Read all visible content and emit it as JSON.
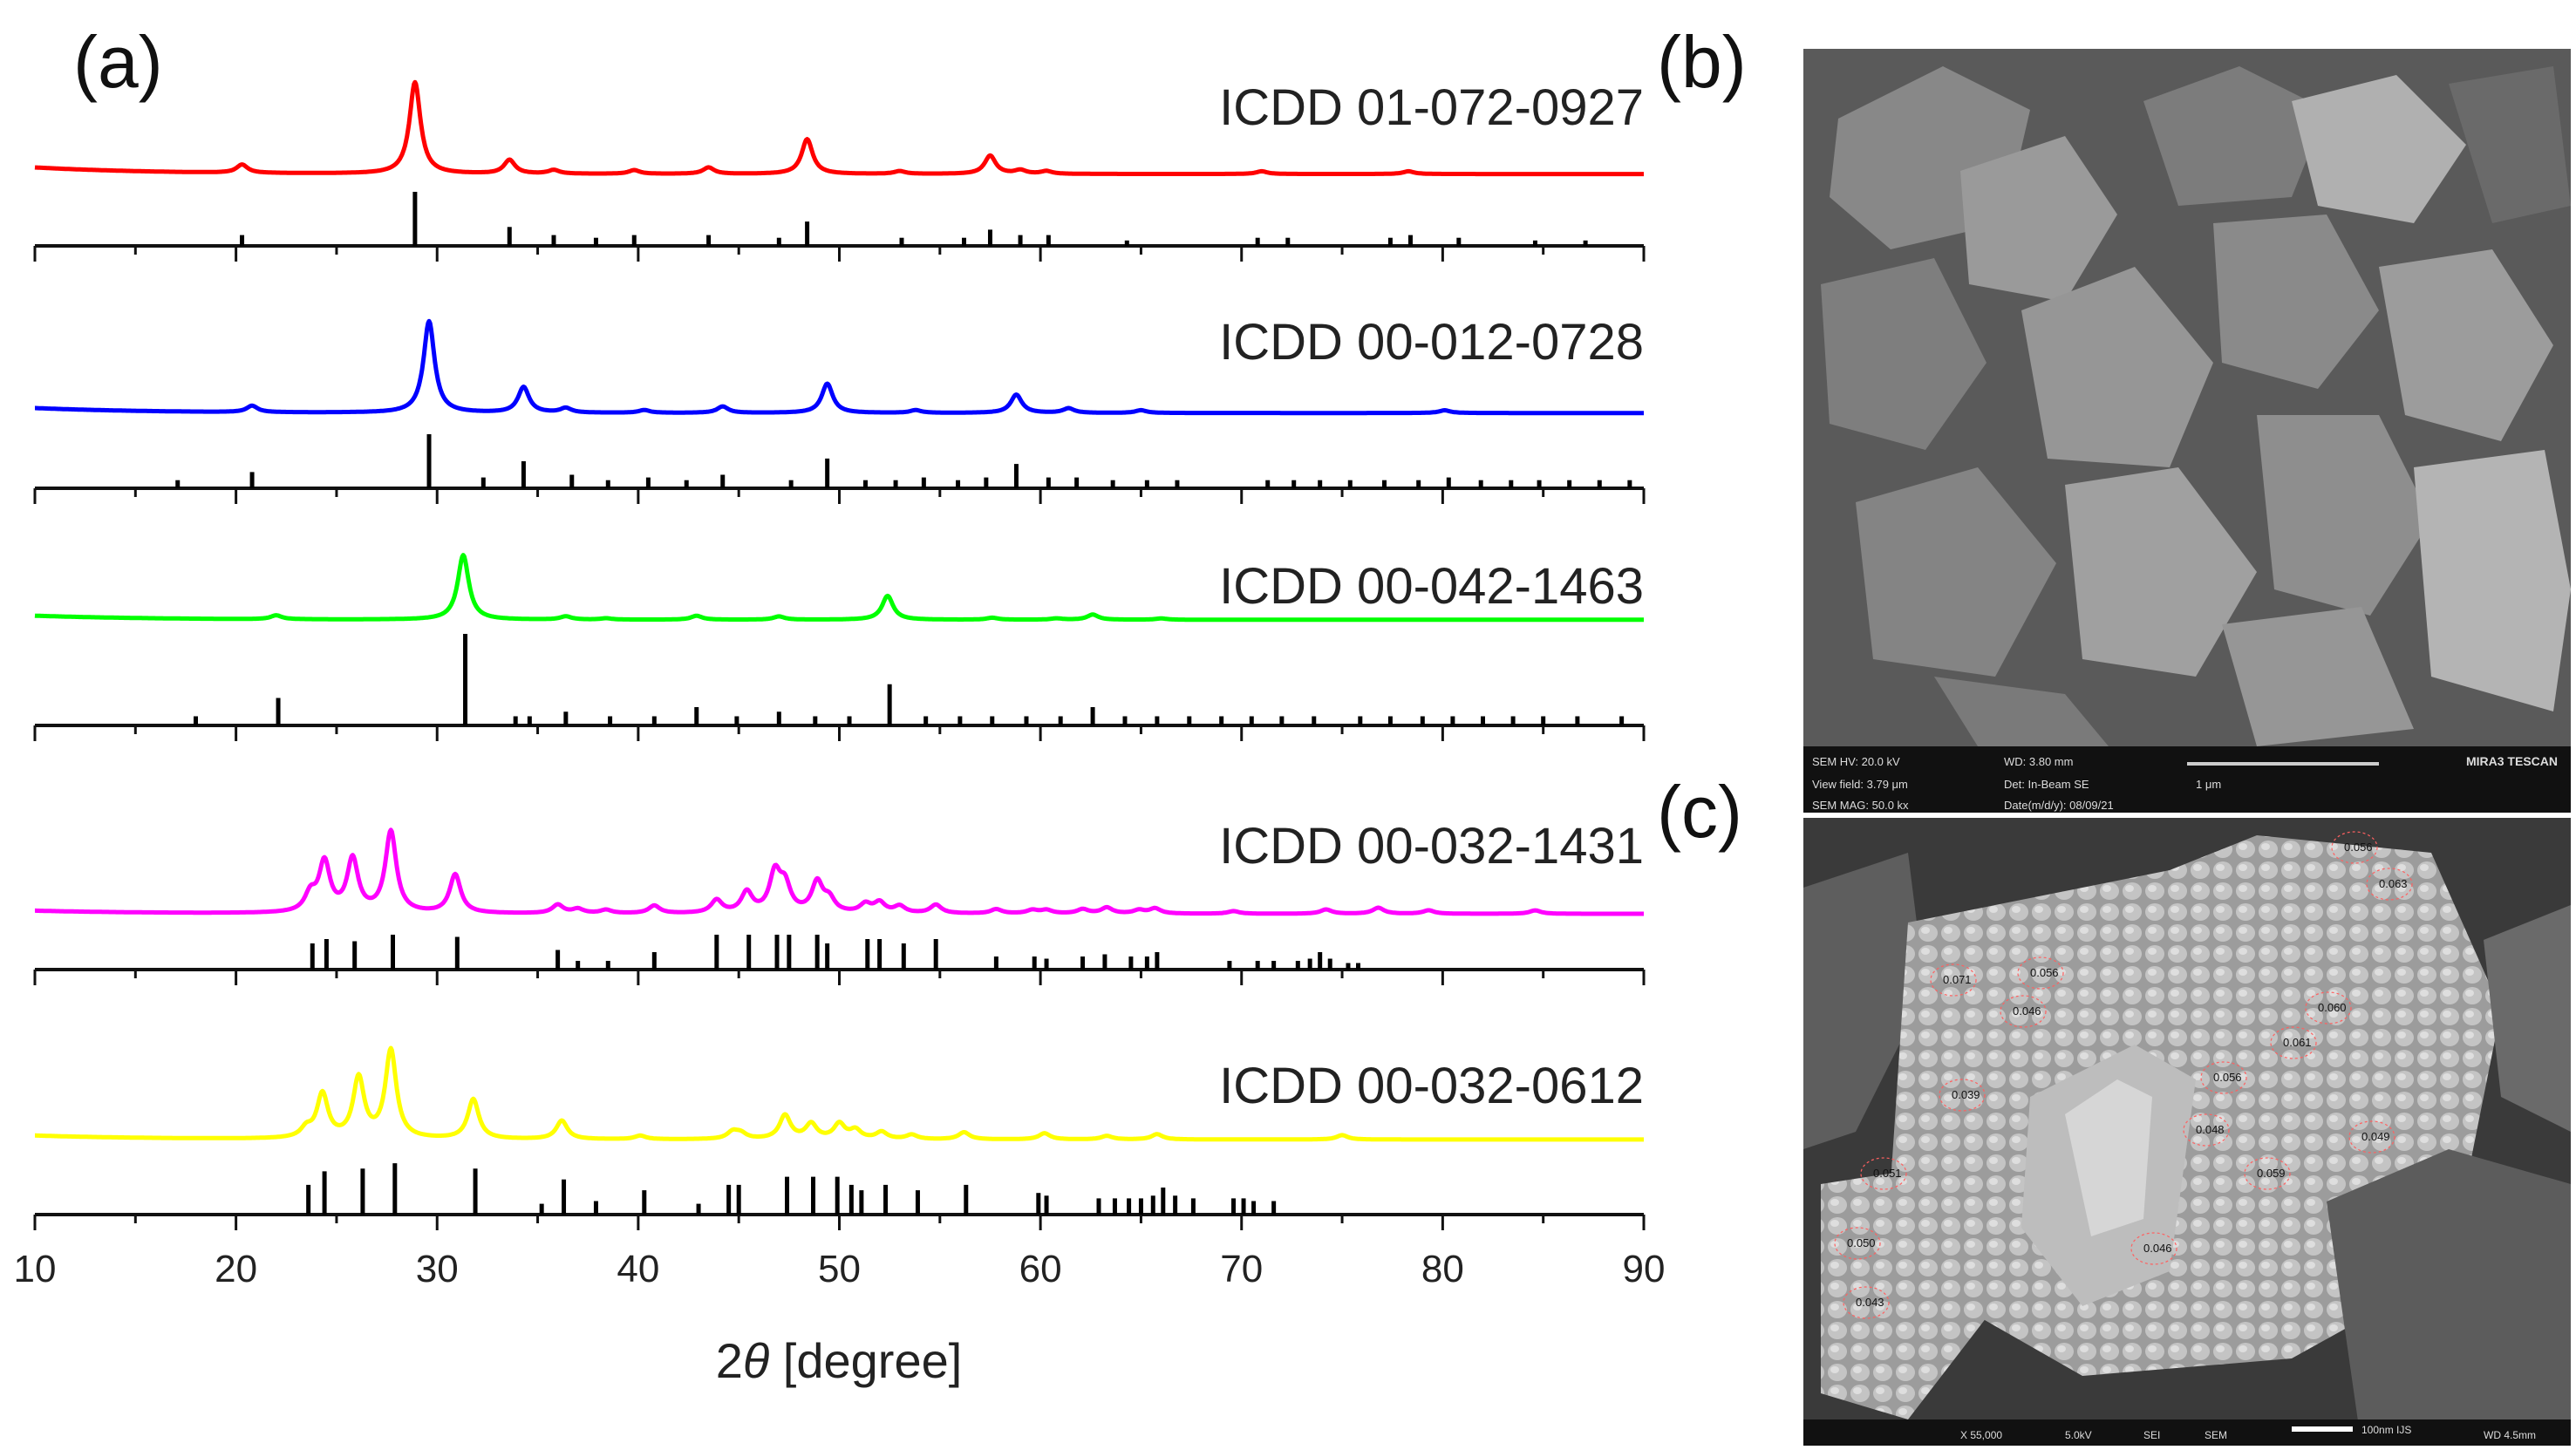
{
  "panels": {
    "a_label": "(a)",
    "b_label": "(b)",
    "c_label": "(c)"
  },
  "sem_b": {
    "bar_fields": [
      "SEM HV: 20.0 kV",
      "WD: 3.80 mm",
      "View field: 3.79 μm",
      "Det: In-Beam SE",
      "SEM MAG: 50.0 kx",
      "Date(m/d/y): 08/09/21"
    ],
    "scale_label": "1 μm",
    "brand": "MIRA3 TESCAN"
  },
  "sem_c": {
    "grain_labels": [
      "0.056",
      "0.063",
      "0.071",
      "0.056",
      "0.046",
      "0.060",
      "0.061",
      "0.039",
      "0.056",
      "0.048",
      "0.049",
      "0.059",
      "0.051",
      "0.050",
      "0.046",
      "0.043"
    ],
    "scale_label": "100nm IJS",
    "footer": [
      "X 55,000",
      "5.0kV",
      "SEI",
      "SEM",
      "WD 4.5mm"
    ]
  },
  "chart_data": {
    "type": "line",
    "xlabel_prefix": "2",
    "xlabel_symbol": "θ",
    "xlabel_suffix": " [degree]",
    "xlim": [
      10,
      90
    ],
    "xticks": [
      10,
      20,
      30,
      40,
      50,
      60,
      70,
      80,
      90
    ],
    "series": [
      {
        "name": "ICDD 01-072-0927",
        "color": "#ff0000",
        "baseline": 0.08,
        "peaks": [
          [
            20.3,
            0.09
          ],
          [
            28.9,
            1.0
          ],
          [
            33.6,
            0.15
          ],
          [
            35.8,
            0.04
          ],
          [
            39.8,
            0.04
          ],
          [
            43.5,
            0.07
          ],
          [
            48.4,
            0.38
          ],
          [
            53.0,
            0.03
          ],
          [
            57.5,
            0.2
          ],
          [
            59.0,
            0.04
          ],
          [
            60.3,
            0.03
          ],
          [
            71.0,
            0.03
          ],
          [
            78.3,
            0.03
          ]
        ],
        "ref_lines": [
          [
            20.3,
            0.2
          ],
          [
            28.9,
            1.0
          ],
          [
            33.6,
            0.35
          ],
          [
            35.8,
            0.2
          ],
          [
            37.9,
            0.15
          ],
          [
            39.8,
            0.2
          ],
          [
            43.5,
            0.2
          ],
          [
            47.0,
            0.15
          ],
          [
            48.4,
            0.45
          ],
          [
            53.1,
            0.15
          ],
          [
            56.2,
            0.15
          ],
          [
            57.5,
            0.3
          ],
          [
            59.0,
            0.2
          ],
          [
            60.4,
            0.2
          ],
          [
            64.3,
            0.1
          ],
          [
            70.8,
            0.15
          ],
          [
            72.3,
            0.15
          ],
          [
            77.4,
            0.15
          ],
          [
            78.4,
            0.2
          ],
          [
            80.8,
            0.15
          ],
          [
            84.6,
            0.1
          ],
          [
            87.1,
            0.1
          ]
        ]
      },
      {
        "name": "ICDD 00-012-0728",
        "color": "#0000ff",
        "baseline": 0.06,
        "peaks": [
          [
            20.8,
            0.07
          ],
          [
            29.6,
            1.0
          ],
          [
            34.3,
            0.28
          ],
          [
            36.4,
            0.05
          ],
          [
            40.3,
            0.03
          ],
          [
            44.2,
            0.07
          ],
          [
            49.4,
            0.32
          ],
          [
            53.8,
            0.03
          ],
          [
            58.8,
            0.2
          ],
          [
            61.4,
            0.05
          ],
          [
            65.0,
            0.03
          ],
          [
            80.1,
            0.03
          ]
        ],
        "ref_lines": [
          [
            17.1,
            0.15
          ],
          [
            20.8,
            0.3
          ],
          [
            29.6,
            1.0
          ],
          [
            32.3,
            0.2
          ],
          [
            34.3,
            0.5
          ],
          [
            36.7,
            0.25
          ],
          [
            38.5,
            0.15
          ],
          [
            40.5,
            0.2
          ],
          [
            42.4,
            0.15
          ],
          [
            44.2,
            0.25
          ],
          [
            47.6,
            0.15
          ],
          [
            49.4,
            0.55
          ],
          [
            51.3,
            0.15
          ],
          [
            52.8,
            0.15
          ],
          [
            54.2,
            0.2
          ],
          [
            55.9,
            0.15
          ],
          [
            57.3,
            0.2
          ],
          [
            58.8,
            0.45
          ],
          [
            60.4,
            0.2
          ],
          [
            61.8,
            0.2
          ],
          [
            63.6,
            0.15
          ],
          [
            65.3,
            0.15
          ],
          [
            66.8,
            0.15
          ],
          [
            71.3,
            0.15
          ],
          [
            72.6,
            0.15
          ],
          [
            73.9,
            0.15
          ],
          [
            75.4,
            0.15
          ],
          [
            77.1,
            0.15
          ],
          [
            78.8,
            0.15
          ],
          [
            80.3,
            0.2
          ],
          [
            81.9,
            0.15
          ],
          [
            83.4,
            0.15
          ],
          [
            84.8,
            0.15
          ],
          [
            86.3,
            0.15
          ],
          [
            87.8,
            0.15
          ],
          [
            89.3,
            0.15
          ]
        ]
      },
      {
        "name": "ICDD 00-042-1463",
        "color": "#00ff00",
        "baseline": 0.07,
        "peaks": [
          [
            22.0,
            0.06
          ],
          [
            31.3,
            1.0
          ],
          [
            36.4,
            0.05
          ],
          [
            38.4,
            0.02
          ],
          [
            42.9,
            0.06
          ],
          [
            47.0,
            0.05
          ],
          [
            52.4,
            0.37
          ],
          [
            57.6,
            0.03
          ],
          [
            60.8,
            0.02
          ],
          [
            62.6,
            0.08
          ],
          [
            66.0,
            0.02
          ]
        ],
        "ref_lines": [
          [
            18.0,
            0.1
          ],
          [
            22.1,
            0.3
          ],
          [
            31.4,
            1.0
          ],
          [
            33.9,
            0.1
          ],
          [
            34.6,
            0.1
          ],
          [
            36.4,
            0.15
          ],
          [
            38.6,
            0.1
          ],
          [
            40.8,
            0.1
          ],
          [
            42.9,
            0.2
          ],
          [
            44.9,
            0.1
          ],
          [
            47.0,
            0.15
          ],
          [
            48.8,
            0.1
          ],
          [
            50.5,
            0.1
          ],
          [
            52.5,
            0.45
          ],
          [
            54.3,
            0.1
          ],
          [
            56.0,
            0.1
          ],
          [
            57.6,
            0.1
          ],
          [
            59.3,
            0.1
          ],
          [
            61.0,
            0.1
          ],
          [
            62.6,
            0.2
          ],
          [
            64.2,
            0.1
          ],
          [
            65.8,
            0.1
          ],
          [
            67.4,
            0.1
          ],
          [
            69.0,
            0.1
          ],
          [
            70.5,
            0.1
          ],
          [
            72.0,
            0.1
          ],
          [
            73.6,
            0.1
          ],
          [
            75.9,
            0.1
          ],
          [
            77.4,
            0.1
          ],
          [
            79.0,
            0.1
          ],
          [
            80.5,
            0.1
          ],
          [
            82.0,
            0.1
          ],
          [
            83.5,
            0.1
          ],
          [
            85.0,
            0.1
          ],
          [
            86.7,
            0.1
          ],
          [
            88.9,
            0.1
          ]
        ]
      },
      {
        "name": "ICDD 00-032-1431",
        "color": "#ff00ff",
        "baseline": 0.04,
        "peaks": [
          [
            23.7,
            0.2
          ],
          [
            24.4,
            0.58
          ],
          [
            25.8,
            0.62
          ],
          [
            27.7,
            0.95
          ],
          [
            30.9,
            0.45
          ],
          [
            36.0,
            0.1
          ],
          [
            37.0,
            0.05
          ],
          [
            38.4,
            0.04
          ],
          [
            40.8,
            0.09
          ],
          [
            43.9,
            0.15
          ],
          [
            45.4,
            0.24
          ],
          [
            46.8,
            0.45
          ],
          [
            47.3,
            0.3
          ],
          [
            48.9,
            0.35
          ],
          [
            49.5,
            0.15
          ],
          [
            51.3,
            0.1
          ],
          [
            52.0,
            0.12
          ],
          [
            53.0,
            0.08
          ],
          [
            54.8,
            0.1
          ],
          [
            57.8,
            0.05
          ],
          [
            59.6,
            0.04
          ],
          [
            60.3,
            0.04
          ],
          [
            62.1,
            0.05
          ],
          [
            63.3,
            0.07
          ],
          [
            64.9,
            0.04
          ],
          [
            65.7,
            0.06
          ],
          [
            69.6,
            0.03
          ],
          [
            74.2,
            0.05
          ],
          [
            76.8,
            0.07
          ],
          [
            79.3,
            0.04
          ],
          [
            84.6,
            0.04
          ]
        ],
        "ref_lines": [
          [
            23.8,
            0.6
          ],
          [
            24.5,
            0.7
          ],
          [
            25.9,
            0.65
          ],
          [
            27.8,
            0.8
          ],
          [
            31.0,
            0.75
          ],
          [
            36.0,
            0.45
          ],
          [
            37.0,
            0.2
          ],
          [
            38.5,
            0.2
          ],
          [
            40.8,
            0.4
          ],
          [
            43.9,
            0.8
          ],
          [
            45.5,
            0.8
          ],
          [
            46.9,
            0.8
          ],
          [
            47.5,
            0.8
          ],
          [
            48.9,
            0.8
          ],
          [
            49.4,
            0.6
          ],
          [
            51.4,
            0.7
          ],
          [
            52.0,
            0.7
          ],
          [
            53.2,
            0.6
          ],
          [
            54.8,
            0.7
          ],
          [
            57.8,
            0.3
          ],
          [
            59.7,
            0.3
          ],
          [
            60.3,
            0.25
          ],
          [
            62.1,
            0.3
          ],
          [
            63.2,
            0.35
          ],
          [
            64.5,
            0.3
          ],
          [
            65.3,
            0.3
          ],
          [
            65.8,
            0.4
          ],
          [
            69.4,
            0.2
          ],
          [
            70.8,
            0.2
          ],
          [
            71.6,
            0.2
          ],
          [
            72.8,
            0.2
          ],
          [
            73.4,
            0.25
          ],
          [
            73.9,
            0.4
          ],
          [
            74.4,
            0.25
          ],
          [
            75.3,
            0.15
          ],
          [
            75.8,
            0.15
          ]
        ]
      },
      {
        "name": "ICDD 00-032-0612",
        "color": "#ffff00",
        "baseline": 0.05,
        "peaks": [
          [
            23.5,
            0.1
          ],
          [
            24.3,
            0.5
          ],
          [
            26.1,
            0.68
          ],
          [
            27.7,
            1.0
          ],
          [
            31.8,
            0.45
          ],
          [
            36.2,
            0.21
          ],
          [
            40.1,
            0.04
          ],
          [
            44.7,
            0.08
          ],
          [
            45.1,
            0.06
          ],
          [
            47.3,
            0.27
          ],
          [
            48.6,
            0.17
          ],
          [
            50.0,
            0.17
          ],
          [
            50.8,
            0.1
          ],
          [
            52.1,
            0.08
          ],
          [
            53.6,
            0.05
          ],
          [
            56.2,
            0.08
          ],
          [
            60.2,
            0.07
          ],
          [
            63.3,
            0.04
          ],
          [
            65.8,
            0.06
          ],
          [
            75.0,
            0.05
          ]
        ],
        "ref_lines": [
          [
            23.6,
            0.55
          ],
          [
            24.4,
            0.8
          ],
          [
            26.3,
            0.85
          ],
          [
            27.9,
            0.95
          ],
          [
            31.9,
            0.85
          ],
          [
            35.2,
            0.2
          ],
          [
            36.3,
            0.65
          ],
          [
            37.9,
            0.25
          ],
          [
            40.3,
            0.45
          ],
          [
            43.0,
            0.2
          ],
          [
            44.5,
            0.55
          ],
          [
            45.0,
            0.55
          ],
          [
            47.4,
            0.7
          ],
          [
            48.7,
            0.7
          ],
          [
            49.9,
            0.7
          ],
          [
            50.6,
            0.55
          ],
          [
            51.1,
            0.45
          ],
          [
            52.3,
            0.55
          ],
          [
            53.9,
            0.45
          ],
          [
            56.3,
            0.55
          ],
          [
            59.9,
            0.4
          ],
          [
            60.3,
            0.35
          ],
          [
            62.9,
            0.3
          ],
          [
            63.7,
            0.3
          ],
          [
            64.4,
            0.3
          ],
          [
            65.0,
            0.3
          ],
          [
            65.6,
            0.35
          ],
          [
            66.1,
            0.5
          ],
          [
            66.7,
            0.35
          ],
          [
            67.6,
            0.3
          ],
          [
            69.6,
            0.3
          ],
          [
            70.1,
            0.3
          ],
          [
            70.6,
            0.25
          ],
          [
            71.6,
            0.25
          ]
        ]
      }
    ]
  }
}
